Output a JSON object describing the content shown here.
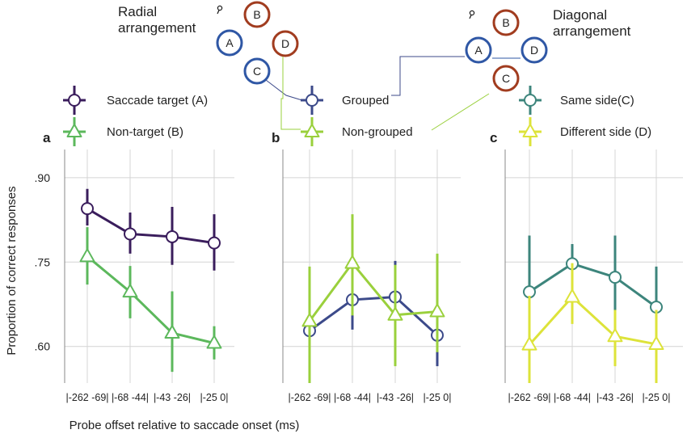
{
  "colors": {
    "saccade_target": "#3a1d5c",
    "non_target": "#5cb85c",
    "grouped": "#3c4a8a",
    "non_grouped": "#9ad03c",
    "same_side": "#3d857c",
    "different_side": "#dde33a",
    "diagram_blue": "#2f57a5",
    "diagram_brown": "#a13c1f",
    "grid": "#d4d4d4"
  },
  "diagrams": {
    "radial_title_line1": "Radial",
    "radial_title_line2": "arrangement",
    "diagonal_title_line1": "Diagonal",
    "diagonal_title_line2": "arrangement",
    "circle_a": "A",
    "circle_b": "B",
    "circle_c": "C",
    "circle_d": "D"
  },
  "axes": {
    "ylabel": "Proportion of correct responses",
    "xlabel": "Probe offset relative to saccade onset (ms)"
  },
  "chart_data": [
    {
      "type": "line",
      "panel": "a",
      "categories": [
        "|-262 -69|",
        "|-68 -44|",
        "|-43 -26|",
        "|-25 0|"
      ],
      "yticks": [
        ".90",
        ".75",
        ".60"
      ],
      "ylim": [
        0.535,
        0.95
      ],
      "grid": true,
      "legend_position": "top-left",
      "series": [
        {
          "name": "Saccade target (A)",
          "marker": "circle",
          "values": [
            0.845,
            0.8,
            0.795,
            0.784
          ],
          "err_low": [
            0.815,
            0.765,
            0.745,
            0.735
          ],
          "err_high": [
            0.88,
            0.838,
            0.848,
            0.835
          ]
        },
        {
          "name": "Non-target (B)",
          "marker": "triangle",
          "values": [
            0.76,
            0.697,
            0.624,
            0.606
          ],
          "err_low": [
            0.71,
            0.65,
            0.555,
            0.577
          ],
          "err_high": [
            0.812,
            0.743,
            0.698,
            0.636
          ]
        }
      ]
    },
    {
      "type": "line",
      "panel": "b",
      "categories": [
        "|-262 -69|",
        "|-68 -44|",
        "|-43 -26|",
        "|-25 0|"
      ],
      "ylim": [
        0.535,
        0.95
      ],
      "grid": true,
      "legend_position": "top-left",
      "series": [
        {
          "name": "Grouped",
          "marker": "circle",
          "values": [
            0.628,
            0.683,
            0.688,
            0.62
          ],
          "err_low": [
            0.535,
            0.63,
            0.625,
            0.565
          ],
          "err_high": [
            0.73,
            0.738,
            0.752,
            0.67
          ]
        },
        {
          "name": "Non-grouped",
          "marker": "triangle",
          "values": [
            0.645,
            0.748,
            0.656,
            0.662
          ],
          "err_low": [
            0.535,
            0.655,
            0.565,
            0.59
          ],
          "err_high": [
            0.742,
            0.835,
            0.745,
            0.765
          ]
        }
      ]
    },
    {
      "type": "line",
      "panel": "c",
      "categories": [
        "|-262 -69|",
        "|-68 -44|",
        "|-43 -26|",
        "|-25 0|"
      ],
      "ylim": [
        0.535,
        0.95
      ],
      "grid": true,
      "legend_position": "top-left",
      "series": [
        {
          "name": "Same side(C)",
          "marker": "circle",
          "values": [
            0.697,
            0.747,
            0.723,
            0.67
          ],
          "err_low": [
            0.605,
            0.715,
            0.665,
            0.605
          ],
          "err_high": [
            0.797,
            0.782,
            0.797,
            0.742
          ]
        },
        {
          "name": "Different side (D)",
          "marker": "triangle",
          "values": [
            0.603,
            0.688,
            0.618,
            0.604
          ],
          "err_low": [
            0.535,
            0.64,
            0.565,
            0.535
          ],
          "err_high": [
            0.69,
            0.748,
            0.665,
            0.665
          ]
        }
      ]
    }
  ]
}
